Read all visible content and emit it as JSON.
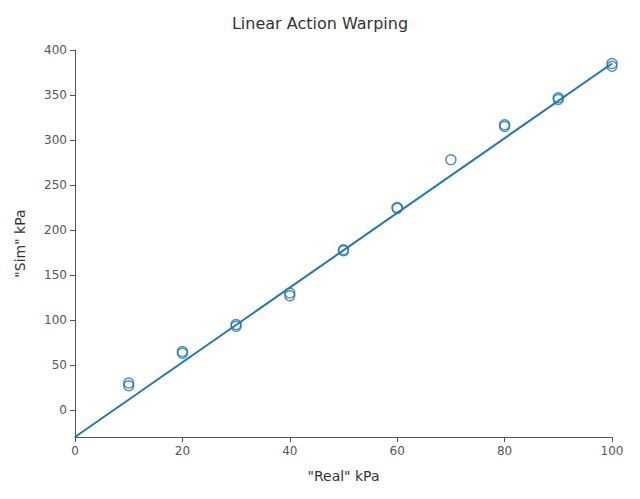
{
  "chart_data": {
    "type": "scatter",
    "title": "Linear Action Warping",
    "xlabel": "\"Real\" kPa",
    "ylabel": "\"Sim\" kPa",
    "series": [
      {
        "type": "scatter",
        "color": "#1f77b4",
        "marker": "circle",
        "x": [
          10,
          10,
          20,
          20,
          30,
          30,
          40,
          40,
          50,
          50,
          60,
          60,
          70,
          80,
          80,
          90,
          90,
          100,
          100
        ],
        "values": [
          30,
          27,
          65,
          63,
          95,
          93,
          127,
          130,
          178,
          177,
          225,
          224,
          278,
          317,
          315,
          345,
          347,
          382,
          385
        ]
      },
      {
        "type": "line",
        "color": "#1f77b4",
        "line_style": "solid",
        "x": [
          0,
          100
        ],
        "values": [
          -30,
          385
        ]
      }
    ],
    "xlim": [
      0,
      100
    ],
    "ylim": [
      -30,
      400
    ],
    "xticks": [
      0,
      20,
      40,
      60,
      80,
      100
    ],
    "yticks": [
      0,
      50,
      100,
      150,
      200,
      250,
      300,
      350,
      400
    ],
    "grid": false
  }
}
